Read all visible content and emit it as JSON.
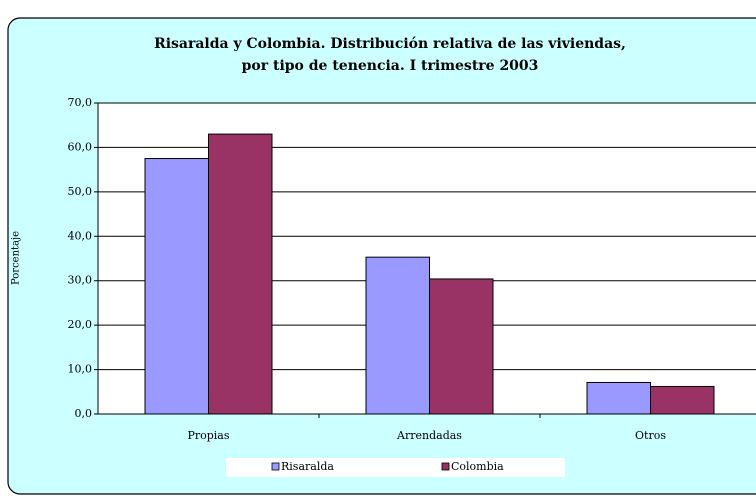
{
  "chart_data": {
    "type": "bar",
    "title": [
      "Risaralda y Colombia. Distribución relativa de las viviendas,",
      "por tipo de tenencia. I trimestre 2003"
    ],
    "y_label": "Porcentaje",
    "categories": [
      "Propias",
      "Arrendadas",
      "Otros"
    ],
    "series": [
      {
        "name": "Risaralda",
        "color": "#9999ff",
        "values": [
          57.5,
          35.3,
          7.1
        ]
      },
      {
        "name": "Colombia",
        "color": "#993366",
        "values": [
          63.0,
          30.4,
          6.2
        ]
      }
    ],
    "ylim": [
      0,
      70
    ],
    "yticks": [
      {
        "value": 0,
        "label": "0,0"
      },
      {
        "value": 10,
        "label": "10,0"
      },
      {
        "value": 20,
        "label": "20,0"
      },
      {
        "value": 30,
        "label": "30,0"
      },
      {
        "value": 40,
        "label": "40,0"
      },
      {
        "value": 50,
        "label": "50,0"
      },
      {
        "value": 60,
        "label": "60,0"
      },
      {
        "value": 70,
        "label": "70,0"
      }
    ],
    "grid": true,
    "legend": "bottom"
  }
}
